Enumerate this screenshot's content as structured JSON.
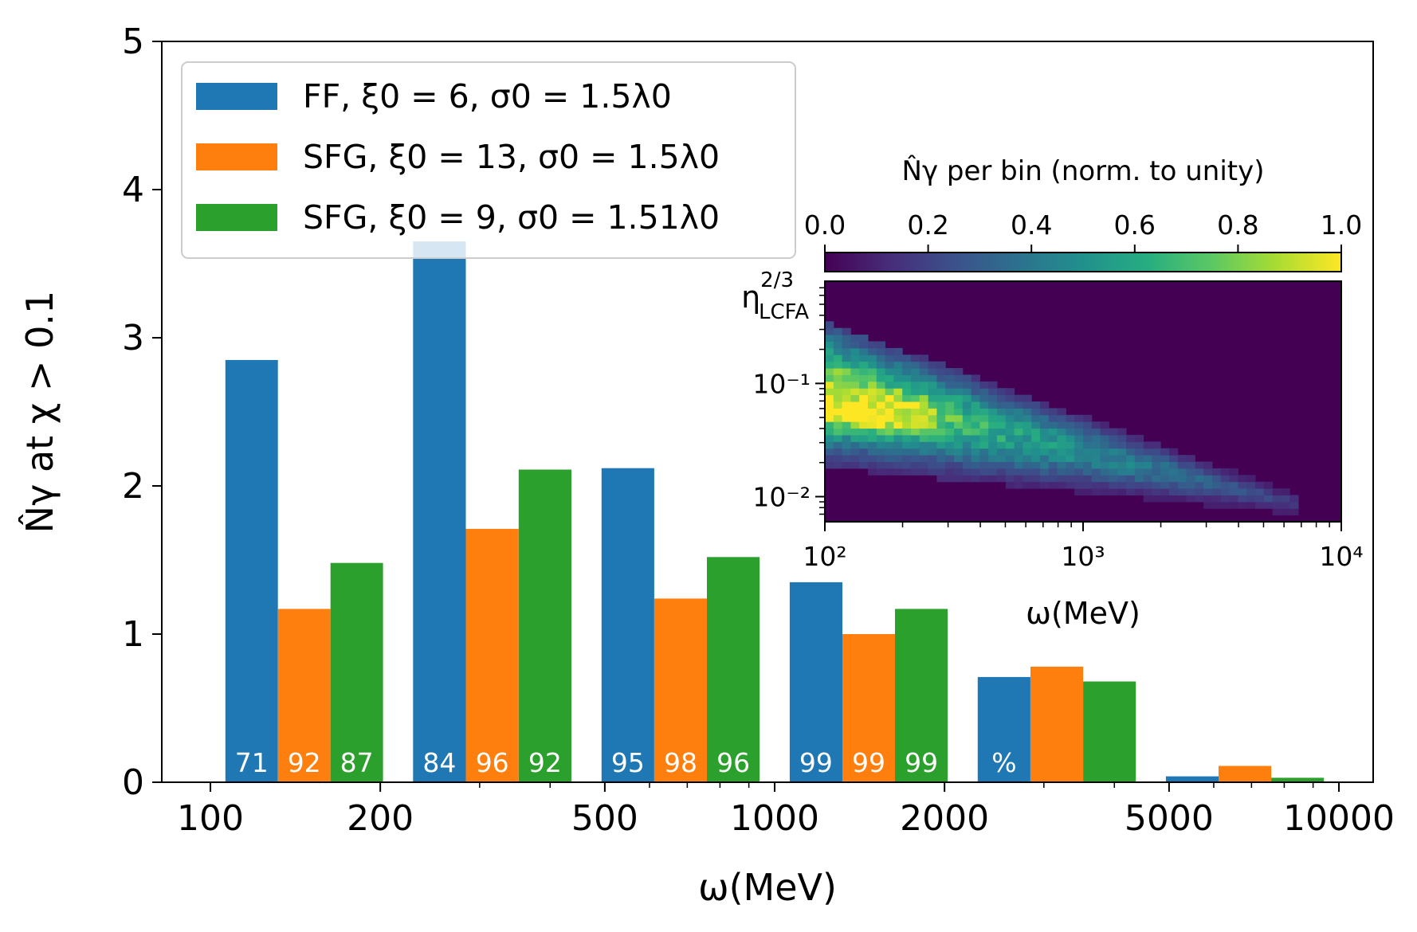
{
  "chart_data": [
    {
      "type": "bar",
      "xscale": "log",
      "xlim": [
        82,
        11500
      ],
      "ylim": [
        0,
        5
      ],
      "xlabel": "ω(MeV)",
      "ylabel": "N̂γ at χ > 0.1",
      "xticks": [
        100,
        200,
        500,
        1000,
        2000,
        5000,
        10000
      ],
      "xtick_labels": [
        "100",
        "200",
        "500",
        "1000",
        "2000",
        "5000",
        "10000"
      ],
      "yticks": [
        0,
        1,
        2,
        3,
        4,
        5
      ],
      "ytick_labels": [
        "0",
        "1",
        "2",
        "3",
        "4",
        "5"
      ],
      "legend_position": "top-left",
      "bin_edges": [
        100,
        215,
        464,
        1000,
        2154,
        4642,
        10000
      ],
      "series": [
        {
          "name": "FF, ξ0 = 6, σ0 = 1.5λ0",
          "color": "#1f77b4",
          "values": [
            2.85,
            3.65,
            2.12,
            1.35,
            0.71,
            0.04
          ]
        },
        {
          "name": "SFG, ξ0 = 13, σ0 = 1.5λ0",
          "color": "#ff7f0e",
          "values": [
            1.17,
            1.71,
            1.24,
            1.0,
            0.78,
            0.11
          ]
        },
        {
          "name": "SFG, ξ0 = 9, σ0 = 1.51λ0",
          "color": "#2ca02c",
          "values": [
            1.48,
            2.11,
            1.52,
            1.17,
            0.68,
            0.03
          ]
        }
      ],
      "bar_annotations": [
        [
          "71",
          "92",
          "87"
        ],
        [
          "84",
          "96",
          "92"
        ],
        [
          "95",
          "98",
          "96"
        ],
        [
          "99",
          "99",
          "99"
        ],
        [
          "%",
          "",
          ""
        ],
        [
          "",
          "",
          ""
        ]
      ]
    },
    {
      "type": "heatmap",
      "title": "N̂γ per bin (norm. to unity)",
      "xscale": "log",
      "yscale": "log",
      "xlim": [
        100,
        10000
      ],
      "ylim": [
        0.006,
        0.8
      ],
      "xlabel": "ω(MeV)",
      "ylabel": "η_LCFA^(2/3)",
      "xtick_labels": [
        "10²",
        "10³",
        "10⁴"
      ],
      "ytick_labels": [
        "10⁻¹",
        "10⁻²"
      ],
      "colorbar": {
        "range": [
          0,
          1
        ],
        "ticks": [
          "0.0",
          "0.2",
          "0.4",
          "0.6",
          "0.8",
          "1.0"
        ],
        "colormap": "viridis",
        "position": "top"
      },
      "peak": {
        "omega_MeV": 150,
        "eta": 0.055,
        "value": 1.0
      },
      "band_upper_eta_at_100MeV": 0.35,
      "band_lower_eta_at_100MeV": 0.018,
      "band_end_omega_MeV": 7000
    }
  ]
}
